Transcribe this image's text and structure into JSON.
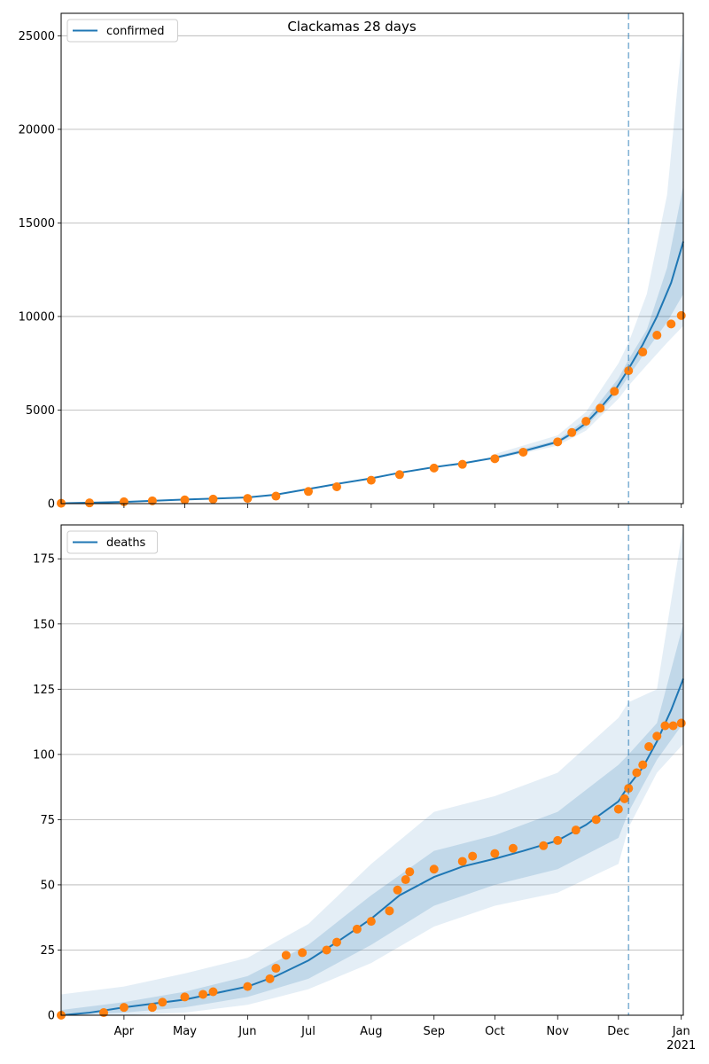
{
  "title": "Clackamas 28 days",
  "colors": {
    "model_line": "#1f77b4",
    "observed": "#ff7f0e",
    "band": "#1f77b4",
    "grid": "#b0b0b0",
    "forecast_line": "#1f77b4"
  },
  "x_axis": {
    "ticks": [
      {
        "date": "2020-04-01",
        "label": "Apr"
      },
      {
        "date": "2020-05-01",
        "label": "May"
      },
      {
        "date": "2020-06-01",
        "label": "Jun"
      },
      {
        "date": "2020-07-01",
        "label": "Jul"
      },
      {
        "date": "2020-08-01",
        "label": "Aug"
      },
      {
        "date": "2020-09-01",
        "label": "Sep"
      },
      {
        "date": "2020-10-01",
        "label": "Oct"
      },
      {
        "date": "2020-11-01",
        "label": "Nov"
      },
      {
        "date": "2020-12-01",
        "label": "Dec"
      },
      {
        "date": "2021-01-01",
        "label": "Jan"
      }
    ],
    "year_label": "2021",
    "range": [
      "2020-03-01",
      "2021-01-02"
    ],
    "forecast_start": "2020-12-06"
  },
  "chart_data": [
    {
      "type": "line",
      "legend": "confirmed",
      "legend_position": "top-left",
      "grid": "horizontal",
      "ylim": [
        0,
        26200
      ],
      "yticks": [
        0,
        5000,
        10000,
        15000,
        20000,
        25000
      ],
      "model": [
        [
          "2020-03-01",
          20
        ],
        [
          "2020-04-01",
          90
        ],
        [
          "2020-05-01",
          220
        ],
        [
          "2020-06-01",
          330
        ],
        [
          "2020-06-15",
          480
        ],
        [
          "2020-07-01",
          780
        ],
        [
          "2020-07-15",
          1050
        ],
        [
          "2020-08-01",
          1350
        ],
        [
          "2020-08-15",
          1650
        ],
        [
          "2020-09-01",
          1950
        ],
        [
          "2020-09-15",
          2150
        ],
        [
          "2020-10-01",
          2450
        ],
        [
          "2020-10-15",
          2800
        ],
        [
          "2020-11-01",
          3300
        ],
        [
          "2020-11-08",
          3750
        ],
        [
          "2020-11-15",
          4300
        ],
        [
          "2020-11-22",
          5100
        ],
        [
          "2020-11-29",
          6000
        ],
        [
          "2020-12-06",
          7200
        ],
        [
          "2020-12-13",
          8500
        ],
        [
          "2020-12-20",
          10000
        ],
        [
          "2020-12-27",
          11800
        ],
        [
          "2021-01-02",
          14000
        ]
      ],
      "band_inner": {
        "lower": [
          [
            "2020-10-01",
            2400
          ],
          [
            "2020-11-01",
            3200
          ],
          [
            "2020-11-15",
            4100
          ],
          [
            "2020-12-01",
            6000
          ],
          [
            "2020-12-06",
            6800
          ],
          [
            "2020-12-15",
            8200
          ],
          [
            "2020-12-25",
            9700
          ],
          [
            "2021-01-02",
            11200
          ]
        ],
        "upper": [
          [
            "2020-10-01",
            2520
          ],
          [
            "2020-11-01",
            3400
          ],
          [
            "2020-11-15",
            4500
          ],
          [
            "2020-12-01",
            6700
          ],
          [
            "2020-12-06",
            7700
          ],
          [
            "2020-12-15",
            9300
          ],
          [
            "2020-12-25",
            12600
          ],
          [
            "2021-01-02",
            17000
          ]
        ]
      },
      "band_outer": {
        "lower": [
          [
            "2020-10-01",
            2350
          ],
          [
            "2020-11-01",
            3100
          ],
          [
            "2020-11-15",
            3900
          ],
          [
            "2020-12-01",
            5600
          ],
          [
            "2020-12-06",
            6300
          ],
          [
            "2020-12-15",
            7400
          ],
          [
            "2020-12-25",
            8600
          ],
          [
            "2021-01-02",
            9500
          ]
        ],
        "upper": [
          [
            "2020-10-01",
            2650
          ],
          [
            "2020-11-01",
            3650
          ],
          [
            "2020-11-15",
            4900
          ],
          [
            "2020-12-01",
            7500
          ],
          [
            "2020-12-06",
            8600
          ],
          [
            "2020-12-15",
            11200
          ],
          [
            "2020-12-25",
            16500
          ],
          [
            "2021-01-02",
            25500
          ]
        ]
      },
      "observed": [
        [
          "2020-03-01",
          20
        ],
        [
          "2020-03-15",
          40
        ],
        [
          "2020-04-01",
          100
        ],
        [
          "2020-04-15",
          150
        ],
        [
          "2020-05-01",
          200
        ],
        [
          "2020-05-15",
          240
        ],
        [
          "2020-06-01",
          280
        ],
        [
          "2020-06-15",
          400
        ],
        [
          "2020-07-01",
          650
        ],
        [
          "2020-07-15",
          900
        ],
        [
          "2020-08-01",
          1250
        ],
        [
          "2020-08-15",
          1550
        ],
        [
          "2020-09-01",
          1900
        ],
        [
          "2020-09-15",
          2100
        ],
        [
          "2020-10-01",
          2400
        ],
        [
          "2020-10-15",
          2750
        ],
        [
          "2020-11-01",
          3300
        ],
        [
          "2020-11-08",
          3800
        ],
        [
          "2020-11-15",
          4400
        ],
        [
          "2020-11-22",
          5100
        ],
        [
          "2020-11-29",
          6000
        ],
        [
          "2020-12-06",
          7100
        ],
        [
          "2020-12-13",
          8100
        ],
        [
          "2020-12-20",
          9000
        ],
        [
          "2020-12-27",
          9600
        ],
        [
          "2021-01-01",
          10050
        ]
      ]
    },
    {
      "type": "line",
      "legend": "deaths",
      "legend_position": "top-left",
      "grid": "horizontal",
      "ylim": [
        0,
        188
      ],
      "yticks": [
        0,
        25,
        50,
        75,
        100,
        125,
        150,
        175
      ],
      "model": [
        [
          "2020-03-01",
          0
        ],
        [
          "2020-03-15",
          1
        ],
        [
          "2020-04-01",
          3
        ],
        [
          "2020-05-01",
          6
        ],
        [
          "2020-06-01",
          11
        ],
        [
          "2020-06-15",
          15
        ],
        [
          "2020-07-01",
          21
        ],
        [
          "2020-07-15",
          28
        ],
        [
          "2020-08-01",
          37
        ],
        [
          "2020-08-15",
          46
        ],
        [
          "2020-09-01",
          53
        ],
        [
          "2020-09-15",
          57
        ],
        [
          "2020-10-01",
          60
        ],
        [
          "2020-10-15",
          63
        ],
        [
          "2020-11-01",
          67
        ],
        [
          "2020-11-15",
          73
        ],
        [
          "2020-12-01",
          82
        ],
        [
          "2020-12-06",
          88
        ],
        [
          "2020-12-13",
          95
        ],
        [
          "2020-12-20",
          105
        ],
        [
          "2020-12-27",
          117
        ],
        [
          "2021-01-02",
          129
        ]
      ],
      "band_inner": {
        "lower": [
          [
            "2020-03-01",
            0
          ],
          [
            "2020-04-01",
            1
          ],
          [
            "2020-05-01",
            3
          ],
          [
            "2020-06-01",
            7
          ],
          [
            "2020-07-01",
            14
          ],
          [
            "2020-08-01",
            27
          ],
          [
            "2020-09-01",
            42
          ],
          [
            "2020-10-01",
            50
          ],
          [
            "2020-11-01",
            56
          ],
          [
            "2020-12-01",
            68
          ],
          [
            "2020-12-06",
            78
          ],
          [
            "2020-12-20",
            98
          ],
          [
            "2021-01-02",
            112
          ]
        ],
        "upper": [
          [
            "2020-03-01",
            2
          ],
          [
            "2020-04-01",
            5
          ],
          [
            "2020-05-01",
            9
          ],
          [
            "2020-06-01",
            15
          ],
          [
            "2020-07-01",
            27
          ],
          [
            "2020-08-01",
            46
          ],
          [
            "2020-09-01",
            63
          ],
          [
            "2020-10-01",
            69
          ],
          [
            "2020-11-01",
            78
          ],
          [
            "2020-12-01",
            96
          ],
          [
            "2020-12-06",
            100
          ],
          [
            "2020-12-20",
            112
          ],
          [
            "2021-01-02",
            150
          ]
        ]
      },
      "band_outer": {
        "lower": [
          [
            "2020-03-01",
            0
          ],
          [
            "2020-04-01",
            0
          ],
          [
            "2020-05-01",
            1
          ],
          [
            "2020-06-01",
            4
          ],
          [
            "2020-07-01",
            10
          ],
          [
            "2020-08-01",
            20
          ],
          [
            "2020-09-01",
            34
          ],
          [
            "2020-10-01",
            42
          ],
          [
            "2020-11-01",
            47
          ],
          [
            "2020-12-01",
            58
          ],
          [
            "2020-12-06",
            72
          ],
          [
            "2020-12-20",
            93
          ],
          [
            "2021-01-02",
            104
          ]
        ],
        "upper": [
          [
            "2020-03-01",
            8
          ],
          [
            "2020-04-01",
            11
          ],
          [
            "2020-05-01",
            16
          ],
          [
            "2020-06-01",
            22
          ],
          [
            "2020-07-01",
            35
          ],
          [
            "2020-08-01",
            58
          ],
          [
            "2020-09-01",
            78
          ],
          [
            "2020-10-01",
            84
          ],
          [
            "2020-11-01",
            93
          ],
          [
            "2020-12-01",
            114
          ],
          [
            "2020-12-06",
            120
          ],
          [
            "2020-12-20",
            125
          ],
          [
            "2021-01-02",
            188
          ]
        ]
      },
      "observed": [
        [
          "2020-03-01",
          0
        ],
        [
          "2020-03-22",
          1
        ],
        [
          "2020-04-01",
          3
        ],
        [
          "2020-04-15",
          3
        ],
        [
          "2020-04-20",
          5
        ],
        [
          "2020-05-01",
          7
        ],
        [
          "2020-05-10",
          8
        ],
        [
          "2020-05-15",
          9
        ],
        [
          "2020-06-01",
          11
        ],
        [
          "2020-06-12",
          14
        ],
        [
          "2020-06-15",
          18
        ],
        [
          "2020-06-20",
          23
        ],
        [
          "2020-06-28",
          24
        ],
        [
          "2020-07-10",
          25
        ],
        [
          "2020-07-15",
          28
        ],
        [
          "2020-07-25",
          33
        ],
        [
          "2020-08-01",
          36
        ],
        [
          "2020-08-10",
          40
        ],
        [
          "2020-08-14",
          48
        ],
        [
          "2020-08-18",
          52
        ],
        [
          "2020-08-20",
          55
        ],
        [
          "2020-09-01",
          56
        ],
        [
          "2020-09-15",
          59
        ],
        [
          "2020-09-20",
          61
        ],
        [
          "2020-10-01",
          62
        ],
        [
          "2020-10-10",
          64
        ],
        [
          "2020-10-25",
          65
        ],
        [
          "2020-11-01",
          67
        ],
        [
          "2020-11-10",
          71
        ],
        [
          "2020-11-20",
          75
        ],
        [
          "2020-12-01",
          79
        ],
        [
          "2020-12-04",
          83
        ],
        [
          "2020-12-06",
          87
        ],
        [
          "2020-12-10",
          93
        ],
        [
          "2020-12-13",
          96
        ],
        [
          "2020-12-16",
          103
        ],
        [
          "2020-12-20",
          107
        ],
        [
          "2020-12-24",
          111
        ],
        [
          "2020-12-28",
          111
        ],
        [
          "2021-01-01",
          112
        ]
      ]
    }
  ]
}
